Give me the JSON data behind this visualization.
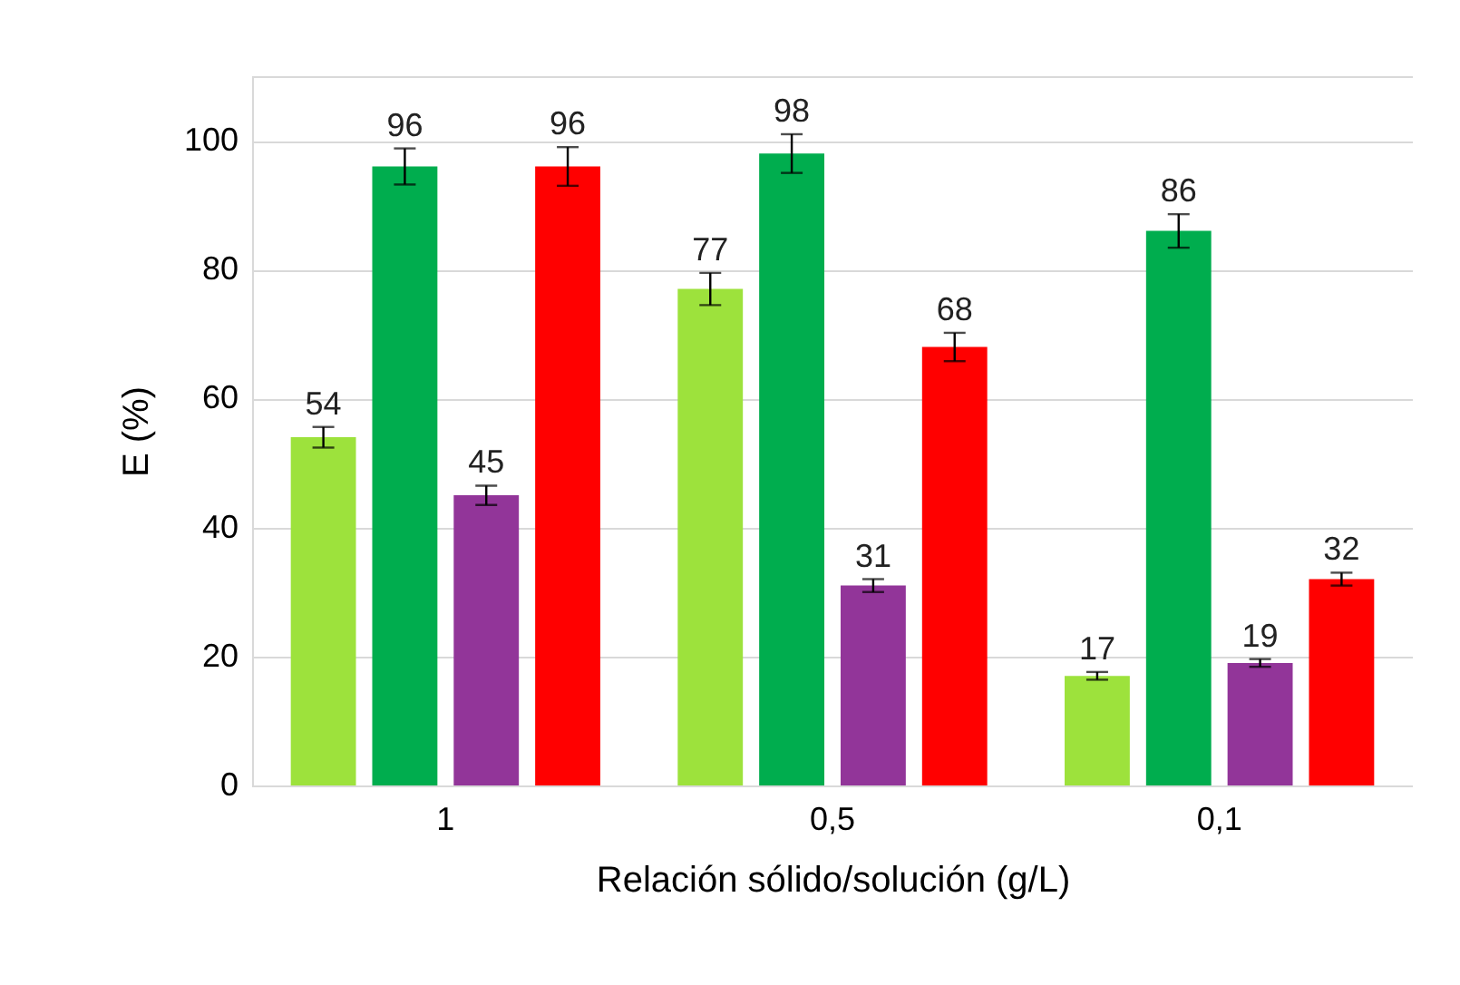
{
  "chart_data": {
    "type": "bar",
    "xlabel": "Relación sólido/solución (g/L)",
    "ylabel": "E (%)",
    "categories": [
      "1",
      "0,5",
      "0,1"
    ],
    "series": [
      {
        "color": "#9de23c",
        "values": [
          54,
          77,
          17
        ],
        "errors": [
          1.6,
          2.5,
          0.6
        ]
      },
      {
        "color": "#00ad4e",
        "values": [
          96,
          98,
          86
        ],
        "errors": [
          2.8,
          3,
          2.6
        ]
      },
      {
        "color": "#923599",
        "values": [
          45,
          31,
          19
        ],
        "errors": [
          1.5,
          1,
          0.6
        ]
      },
      {
        "color": "#ff0000",
        "values": [
          96,
          68,
          32
        ],
        "errors": [
          3,
          2.2,
          1
        ]
      }
    ],
    "ylim": [
      0,
      110
    ],
    "yticks": [
      0,
      20,
      40,
      60,
      80,
      100
    ],
    "grid": "y",
    "data_labels": true,
    "legend": false
  }
}
